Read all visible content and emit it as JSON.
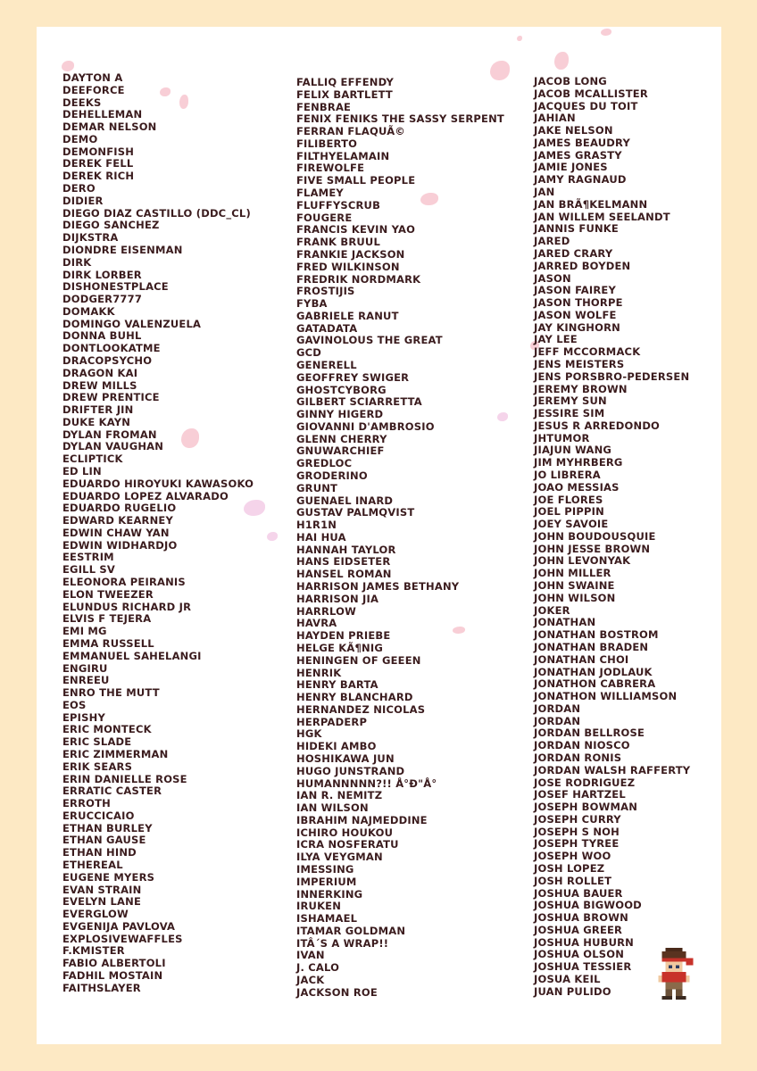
{
  "columns": [
    [
      "DAYTON A",
      "DEEFORCE",
      "DEEKS",
      "DEHELLEMAN",
      "DEMAR NELSON",
      "DEMO",
      "DEMONFISH",
      "DEREK FELL",
      "DEREK RICH",
      "DERO",
      "DIDIER",
      "DIEGO DIAZ CASTILLO (DDC_CL)",
      "DIEGO SANCHEZ",
      "DIJKSTRA",
      "DIONDRE EISENMAN",
      "DIRK",
      "DIRK LORBER",
      "DISHONESTPLACE",
      "DODGER7777",
      "DOMAKK",
      "DOMINGO VALENZUELA",
      "DONNA BUHL",
      "DONTLOOKATME",
      "DRACOPSYCHO",
      "DRAGON KAI",
      "DREW MILLS",
      "DREW PRENTICE",
      "DRIFTER JIN",
      "DUKE KAYN",
      "DYLAN FROMAN",
      "DYLAN VAUGHAN",
      "ECLIPTICK",
      "ED LIN",
      "EDUARDO HIROYUKI KAWASOKO",
      "EDUARDO LOPEZ ALVARADO",
      "EDUARDO RUGELIO",
      "EDWARD KEARNEY",
      "EDWIN CHAW YAN",
      "EDWIN WIDHARDJO",
      "EESTRIM",
      "EGILL SV",
      "ELEONORA PEIRANIS",
      "ELON TWEEZER",
      "ELUNDUS RICHARD JR",
      "ELVIS F TEJERA",
      "EMI MG",
      "EMMA RUSSELL",
      "EMMANUEL SAHELANGI",
      "ENGIRU",
      "ENREEU",
      "ENRO THE MUTT",
      "EOS",
      "EPISHY",
      "ERIC MONTECK",
      "ERIC SLADE",
      "ERIC ZIMMERMAN",
      "ERIK SEARS",
      "ERIN DANIELLE ROSE",
      "ERRATIC CASTER",
      "ERROTH",
      "ERUCCICAIO",
      "ETHAN BURLEY",
      "ETHAN GAUSE",
      "ETHAN HIND",
      "ETHEREAL",
      "EUGENE MYERS",
      "EVAN STRAIN",
      "EVELYN LANE",
      "EVERGLOW",
      "EVGENIJA PAVLOVA",
      "EXPLOSIVEWAFFLES",
      "F.KMISTER",
      "FABIO ALBERTOLI",
      "FADHIL MOSTAIN",
      "FAITHSLAYER"
    ],
    [
      "FALLIQ EFFENDY",
      "FELIX BARTLETT",
      "FENBRAE",
      "FENIX FENIKS THE SASSY SERPENT",
      "FERRAN FLAQUÃ©",
      "FILIBERTO",
      "FILTHYELAMAIN",
      "FIREWOLFE",
      "FIVE SMALL PEOPLE",
      "FLAMEY",
      "FLUFFYSCRUB",
      "FOUGERE",
      "FRANCIS KEVIN YAO",
      "FRANK BRUUL",
      "FRANKIE JACKSON",
      "FRED WILKINSON",
      "FREDRIK NORDMARK",
      "FROSTIJIS",
      "FYBA",
      "GABRIELE RANUT",
      "GATADATA",
      "GAVINOLOUS THE GREAT",
      "GCD",
      "GENERELL",
      "GEOFFREY SWIGER",
      "GHOSTCYBORG",
      "GILBERT SCIARRETTA",
      "GINNY HIGERD",
      "GIOVANNI D'AMBROSIO",
      "GLENN CHERRY",
      "GNUWARCHIEF",
      "GREDLOC",
      "GRODERINO",
      "GRUNT",
      "GUENAEL INARD",
      "GUSTAV PALMQVIST",
      "H1R1N",
      "HAI HUA",
      "HANNAH TAYLOR",
      "HANS EIDSETER",
      "HANSEL ROMAN",
      "HARRISON JAMES BETHANY",
      "HARRISON JIA",
      "HARRLOW",
      "HAVRA",
      "HAYDEN PRIEBE",
      "HELGE KÃ¶NIG",
      "HENINGEN OF GEEEN",
      "HENRIK",
      "HENRY BARTA",
      "HENRY BLANCHARD",
      "HERNANDEZ NICOLAS",
      "HERPADERP",
      "HGK",
      "HIDEKI AMBO",
      "HOSHIKAWA JUN",
      "HUGO JUNSTRAND",
      "HUMANNNNN?!!  Å°Ð\"Å°",
      "IAN R. NEMITZ",
      "IAN WILSON",
      "IBRAHIM NAJMEDDINE",
      "ICHIRO HOUKOU",
      "ICRA NOSFERATU",
      "ILYA VEYGMAN",
      "IMESSING",
      "IMPERIUM",
      "INNERKING",
      "IRUKEN",
      "ISHAMAEL",
      "ITAMAR GOLDMAN",
      "ITÂ´S A WRAP!!",
      "IVAN",
      "J. CALO",
      "JACK",
      "JACKSON ROE"
    ],
    [
      "JACOB LONG",
      "JACOB MCALLISTER",
      "JACQUES DU TOIT",
      "JAHIAN",
      "JAKE NELSON",
      "JAMES BEAUDRY",
      "JAMES GRASTY",
      "JAMIE JONES",
      "JAMY RAGNAUD",
      "JAN",
      "JAN BRÃ¶KELMANN",
      "JAN WILLEM SEELANDT",
      "JANNIS FUNKE",
      "JARED",
      "JARED CRARY",
      "JARRED BOYDEN",
      "JASON",
      "JASON FAIREY",
      "JASON THORPE",
      "JASON WOLFE",
      "JAY KINGHORN",
      "JAY LEE",
      "JEFF MCCORMACK",
      "JENS MEISTERS",
      "JENS PORSBRO-PEDERSEN",
      "JEREMY BROWN",
      "JEREMY SUN",
      "JESSIRE SIM",
      "JESUS R ARREDONDO",
      "JHTUMOR",
      "JIAJUN WANG",
      "JIM MYHRBERG",
      "JO LIBRERA",
      "JOAO MESSIAS",
      "JOE FLORES",
      "JOEL PIPPIN",
      "JOEY SAVOIE",
      "JOHN BOUDOUSQUIE",
      "JOHN JESSE BROWN",
      "JOHN LEVONYAK",
      "JOHN MILLER",
      "JOHN SWAINE",
      "JOHN WILSON",
      "JOKER",
      "JONATHAN",
      "JONATHAN BOSTROM",
      "JONATHAN BRADEN",
      "JONATHAN CHOI",
      "JONATHAN JODLAUK",
      "JONATHON CABRERA",
      "JONATHON WILLIAMSON",
      "JORDAN",
      "JORDAN",
      "JORDAN BELLROSE",
      "JORDAN NIOSCO",
      "JORDAN RONIS",
      "JORDAN WALSH RAFFERTY",
      "JOSE RODRIGUEZ",
      "JOSEF HARTZEL",
      "JOSEPH BOWMAN",
      "JOSEPH CURRY",
      "JOSEPH S NOH",
      "JOSEPH TYREE",
      "JOSEPH WOO",
      "JOSH LOPEZ",
      "JOSH ROLLET",
      "JOSHUA BAUER",
      "JOSHUA BIGWOOD",
      "JOSHUA BROWN",
      "JOSHUA GREER",
      "JOSHUA HUBURN",
      "JOSHUA OLSON",
      "JOSHUA TESSIER",
      "JOSUA KEIL",
      "JUAN PULIDO"
    ]
  ],
  "colors": {
    "background": "#fde9c4",
    "panel": "#ffffff",
    "text": "#3b1c1e",
    "petal": "#f7c6cf"
  },
  "icons": {
    "decoration": "cherry-blossom-petal",
    "character": "pixel-art-character-sprite"
  }
}
